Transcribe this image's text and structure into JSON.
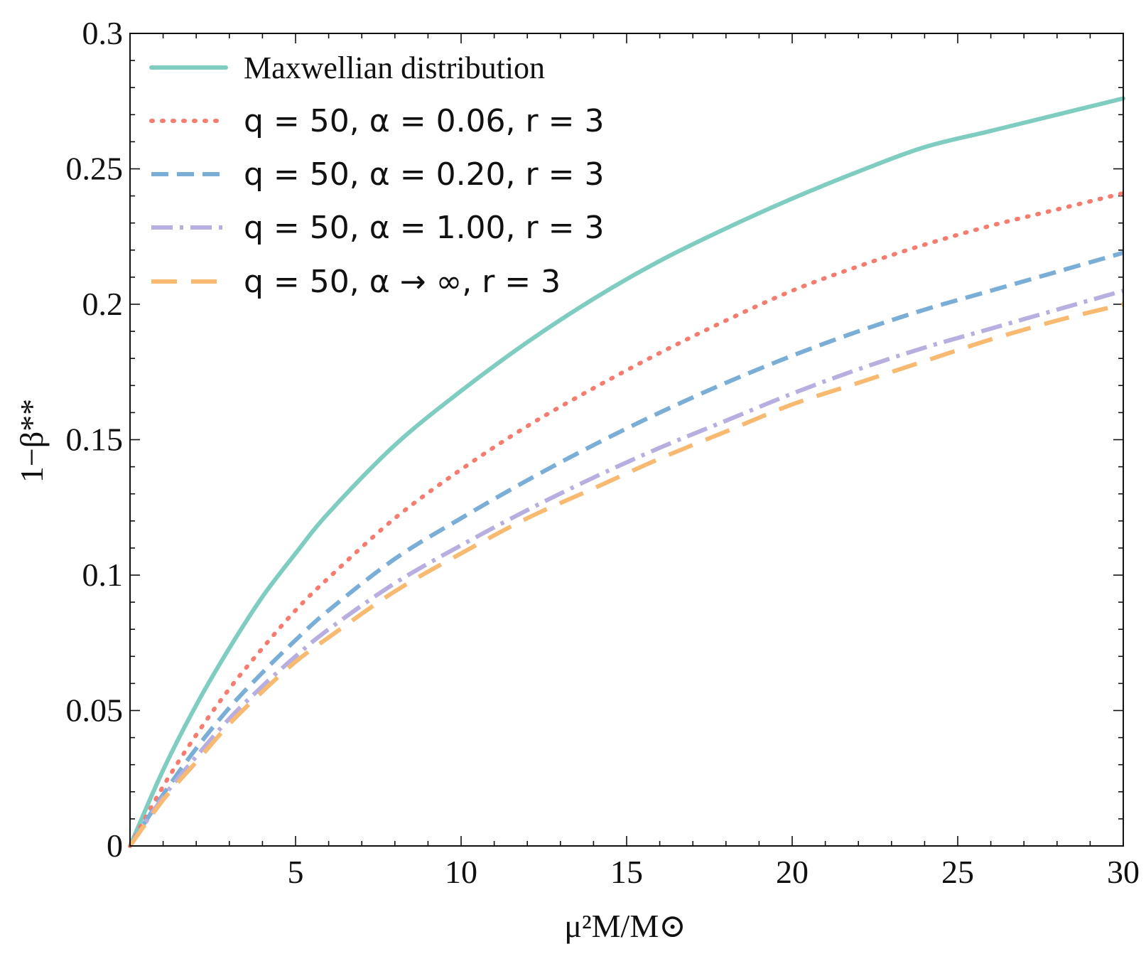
{
  "chart_data": {
    "type": "line",
    "title": "",
    "xlabel": "μ²M/M⊙",
    "ylabel": "1−β**",
    "xlim": [
      0,
      30
    ],
    "ylim": [
      0,
      0.3
    ],
    "xticks": [
      5,
      10,
      15,
      20,
      25,
      30
    ],
    "xtick_labels": [
      "5",
      "10",
      "15",
      "20",
      "25",
      "30"
    ],
    "yticks": [
      0,
      0.05,
      0.1,
      0.15,
      0.2,
      0.25,
      0.3
    ],
    "ytick_labels": [
      "0",
      "0.05",
      "0.1",
      "0.15",
      "0.2",
      "0.25",
      "0.3"
    ],
    "grid": false,
    "legend_position": "top-left",
    "x": [
      0,
      1,
      2,
      3,
      4,
      5,
      6,
      8,
      10,
      12,
      14,
      16,
      18,
      20,
      22,
      24,
      26,
      28,
      30
    ],
    "series": [
      {
        "name": "Maxwellian distribution",
        "legend_plain": "Maxwellian distribution",
        "legend_math": "",
        "color": "#7ecdc0",
        "dash": "solid",
        "values": [
          0.0,
          0.028,
          0.052,
          0.073,
          0.092,
          0.108,
          0.123,
          0.148,
          0.168,
          0.186,
          0.202,
          0.216,
          0.228,
          0.239,
          0.249,
          0.258,
          0.264,
          0.27,
          0.276
        ]
      },
      {
        "name": "q = 50, α = 0.06, r = 3",
        "legend_plain": "",
        "legend_math": "q = 50, α = 0.06, r = 3",
        "color": "#f57c6e",
        "dash": "dotted",
        "values": [
          0.0,
          0.022,
          0.041,
          0.058,
          0.073,
          0.087,
          0.099,
          0.121,
          0.139,
          0.155,
          0.169,
          0.182,
          0.194,
          0.205,
          0.214,
          0.222,
          0.229,
          0.235,
          0.241
        ]
      },
      {
        "name": "q = 50, α = 0.20, r = 3",
        "legend_plain": "",
        "legend_math": "q = 50, α = 0.20, r = 3",
        "color": "#7aaed6",
        "dash": "dashed",
        "values": [
          0.0,
          0.019,
          0.036,
          0.051,
          0.064,
          0.076,
          0.087,
          0.106,
          0.121,
          0.135,
          0.148,
          0.16,
          0.171,
          0.181,
          0.19,
          0.198,
          0.205,
          0.212,
          0.219
        ]
      },
      {
        "name": "q = 50, α = 1.00, r = 3",
        "legend_plain": "",
        "legend_math": "q = 50, α = 1.00, r = 3",
        "color": "#b8aee0",
        "dash": "dashdot",
        "values": [
          0.0,
          0.018,
          0.033,
          0.047,
          0.059,
          0.07,
          0.08,
          0.097,
          0.111,
          0.124,
          0.136,
          0.147,
          0.157,
          0.167,
          0.176,
          0.184,
          0.191,
          0.198,
          0.205
        ]
      },
      {
        "name": "q = 50, α → ∞, r = 3",
        "legend_plain": "",
        "legend_math": "q = 50, α → ∞, r = 3",
        "color": "#f8b970",
        "dash": "longdash",
        "values": [
          0.0,
          0.017,
          0.031,
          0.045,
          0.057,
          0.068,
          0.077,
          0.094,
          0.108,
          0.121,
          0.132,
          0.143,
          0.153,
          0.163,
          0.171,
          0.179,
          0.187,
          0.194,
          0.2
        ]
      }
    ]
  }
}
